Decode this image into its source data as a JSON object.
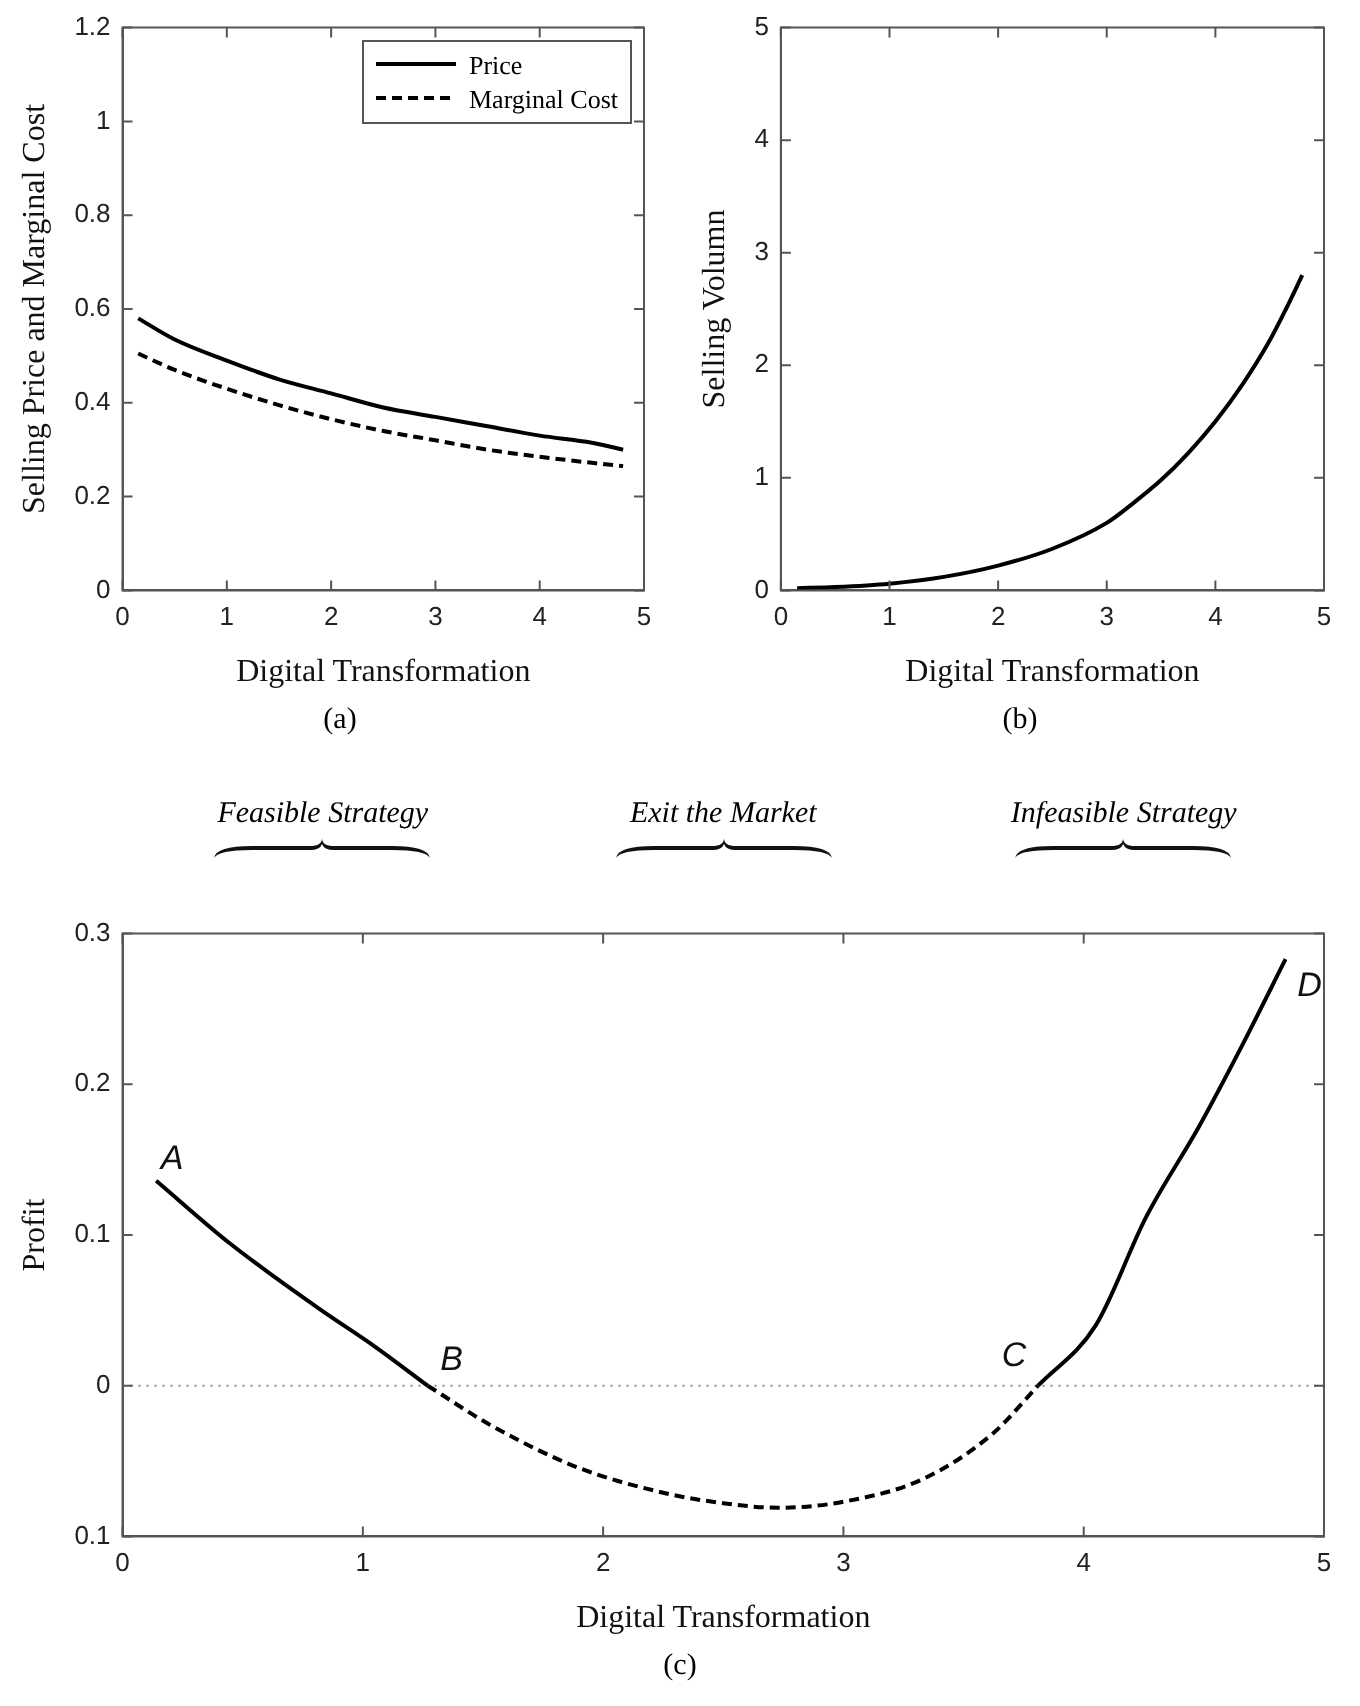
{
  "chart_data": [
    {
      "type": "line",
      "xlabel": "Digital Transformation",
      "ylabel": "Selling Price and Marginal Cost",
      "xlim": [
        0,
        5
      ],
      "xticks": [
        0,
        1,
        2,
        3,
        4,
        5
      ],
      "ylim": [
        0,
        1.2
      ],
      "yticks": [
        0,
        0.2,
        0.4,
        0.6,
        0.8,
        1,
        1.2
      ],
      "grid": false,
      "legend": "top right",
      "annotations": [
        "(a)"
      ],
      "series": [
        {
          "name": "Price",
          "color": "#000000",
          "line_style": "solid",
          "x": [
            0.15,
            0.5,
            1,
            1.5,
            2,
            2.5,
            3,
            3.5,
            4,
            4.5,
            4.8
          ],
          "values": [
            0.58,
            0.535,
            0.49,
            0.45,
            0.42,
            0.39,
            0.37,
            0.35,
            0.33,
            0.315,
            0.3
          ]
        },
        {
          "name": "Marginal Cost",
          "color": "#000000",
          "line_style": "dashed",
          "x": [
            0.15,
            0.5,
            1,
            1.5,
            2,
            2.5,
            3,
            3.5,
            4,
            4.5,
            4.8
          ],
          "values": [
            0.505,
            0.47,
            0.43,
            0.395,
            0.365,
            0.34,
            0.32,
            0.3,
            0.285,
            0.272,
            0.265
          ]
        }
      ]
    },
    {
      "type": "line",
      "xlabel": "Digital Transformation",
      "ylabel": "Selling Volumn",
      "xlim": [
        0,
        5
      ],
      "xticks": [
        0,
        1,
        2,
        3,
        4,
        5
      ],
      "ylim": [
        0,
        5
      ],
      "yticks": [
        0,
        1,
        2,
        3,
        4,
        5
      ],
      "grid": false,
      "annotations": [
        "(b)"
      ],
      "series": [
        {
          "color": "#000000",
          "line_style": "solid",
          "x": [
            0.15,
            0.5,
            1,
            1.5,
            2,
            2.5,
            3,
            3.25,
            3.5,
            3.75,
            4,
            4.25,
            4.5,
            4.65,
            4.8
          ],
          "values": [
            0.02,
            0.03,
            0.06,
            0.12,
            0.22,
            0.37,
            0.6,
            0.78,
            0.98,
            1.22,
            1.5,
            1.83,
            2.22,
            2.5,
            2.8
          ]
        }
      ]
    },
    {
      "type": "line",
      "xlabel": "Digital Transformation",
      "ylabel": "Profit",
      "xlim": [
        0,
        5
      ],
      "xticks": [
        0,
        1,
        2,
        3,
        4,
        5
      ],
      "ylim": [
        -0.1,
        0.3
      ],
      "yticks": [
        {
          "value": -0.1,
          "label": "0.1"
        },
        0,
        0.1,
        0.2,
        0.3
      ],
      "grid": false,
      "ref_lines": [
        {
          "axis": "y",
          "value": 0,
          "color": "#888888",
          "line_style": "dotted"
        }
      ],
      "annotations": [
        "Feasible Strategy",
        "Exit the Market",
        "Infeasible Strategy",
        "(c)",
        {
          "text": "A",
          "x": 0.14,
          "y": 0.136
        },
        {
          "text": "B",
          "x": 1.27,
          "y": 0
        },
        {
          "text": "C",
          "x": 3.81,
          "y": 0
        },
        {
          "text": "D",
          "x": 4.84,
          "y": 0.283
        }
      ],
      "series": [
        {
          "color": "#000000",
          "line_style": "solid",
          "x": [
            0.14,
            0.45,
            0.81,
            1.05,
            1.27
          ],
          "values": [
            0.136,
            0.094,
            0.052,
            0.026,
            0
          ]
        },
        {
          "color": "#000000",
          "line_style": "dashed",
          "x": [
            1.27,
            1.53,
            1.89,
            2.25,
            2.5,
            2.73,
            3.0,
            3.33,
            3.62,
            3.81
          ],
          "values": [
            0,
            -0.026,
            -0.054,
            -0.071,
            -0.078,
            -0.081,
            -0.077,
            -0.062,
            -0.032,
            0
          ]
        },
        {
          "color": "#000000",
          "line_style": "solid",
          "x": [
            3.81,
            4.05,
            4.26,
            4.48,
            4.66,
            4.84
          ],
          "values": [
            0,
            0.04,
            0.112,
            0.172,
            0.226,
            0.283
          ]
        }
      ]
    }
  ]
}
